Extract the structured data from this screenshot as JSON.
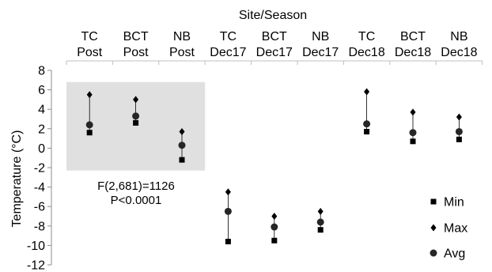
{
  "chart_data": {
    "type": "scatter",
    "top_axis_title": "Site/Season",
    "ylabel": "Temperature (°C)",
    "ylim": [
      -12,
      8
    ],
    "yticks": [
      8,
      6,
      4,
      2,
      0,
      -2,
      -4,
      -6,
      -8,
      -10,
      -12
    ],
    "categories": [
      {
        "site": "TC",
        "season": "Post"
      },
      {
        "site": "BCT",
        "season": "Post"
      },
      {
        "site": "NB",
        "season": "Post"
      },
      {
        "site": "TC",
        "season": "Dec17"
      },
      {
        "site": "BCT",
        "season": "Dec17"
      },
      {
        "site": "NB",
        "season": "Dec17"
      },
      {
        "site": "TC",
        "season": "Dec18"
      },
      {
        "site": "BCT",
        "season": "Dec18"
      },
      {
        "site": "NB",
        "season": "Dec18"
      }
    ],
    "series": [
      {
        "name": "Min",
        "marker": "square",
        "values": [
          1.6,
          2.6,
          -1.2,
          -9.6,
          -9.5,
          -8.4,
          1.7,
          0.7,
          0.9
        ]
      },
      {
        "name": "Max",
        "marker": "diamond",
        "values": [
          5.5,
          5.0,
          1.7,
          -4.5,
          -7.0,
          -6.5,
          5.8,
          3.7,
          3.2
        ]
      },
      {
        "name": "Avg",
        "marker": "circle",
        "values": [
          2.4,
          3.3,
          0.3,
          -6.5,
          -8.1,
          -7.6,
          2.5,
          1.6,
          1.7
        ]
      }
    ],
    "annotation": {
      "lines": [
        "F(2,681)=1126",
        "P<0.0001"
      ]
    },
    "shaded_region": {
      "categories": [
        0,
        1,
        2
      ],
      "y_range": [
        -2.3,
        6.8
      ],
      "color": "#e0e0e0"
    },
    "grid": false,
    "legend_position": "bottom-right"
  }
}
